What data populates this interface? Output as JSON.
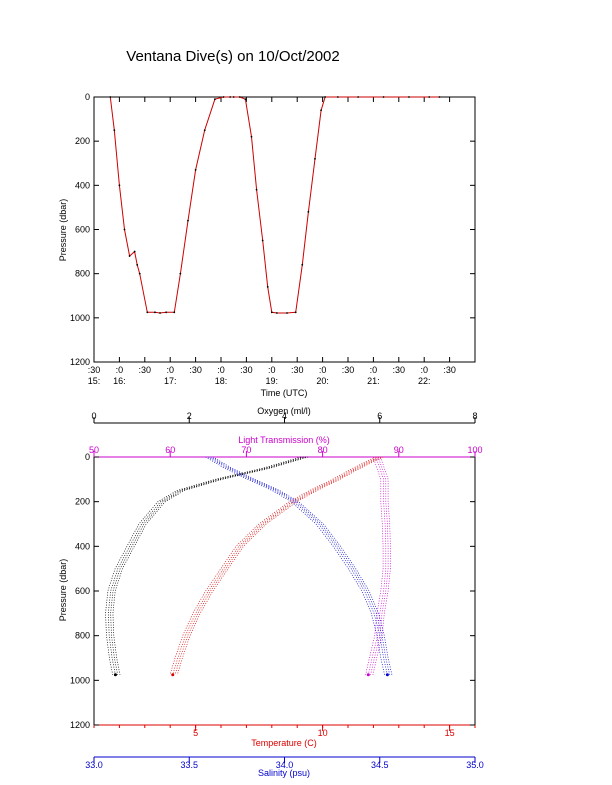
{
  "title": "Ventana Dive(s) on 10/Oct/2002",
  "colors": {
    "axis": "#000000",
    "dive_track": "#cc0000",
    "dive_points": "#000000",
    "oxygen": "#000000",
    "light_transmission": "#cc00cc",
    "temperature": "#dd0000",
    "salinity": "#0000cc"
  },
  "chart_data": [
    {
      "type": "line",
      "title": "Ventana Dive(s) on 10/Oct/2002",
      "xlabel": "Time (UTC)",
      "ylabel": "Pressure (dbar)",
      "xlim": [
        15.5,
        23.0
      ],
      "ylim": [
        1200,
        0
      ],
      "y_ticks": [
        0,
        200,
        400,
        600,
        800,
        1000,
        1200
      ],
      "x_ticks": [
        {
          "value": 15.5,
          "minute": ":30",
          "hour": "15:"
        },
        {
          "value": 16.0,
          "minute": ":0",
          "hour": "16:"
        },
        {
          "value": 16.5,
          "minute": ":30",
          "hour": ""
        },
        {
          "value": 17.0,
          "minute": ":0",
          "hour": "17:"
        },
        {
          "value": 17.5,
          "minute": ":30",
          "hour": ""
        },
        {
          "value": 18.0,
          "minute": ":0",
          "hour": "18:"
        },
        {
          "value": 18.5,
          "minute": ":30",
          "hour": ""
        },
        {
          "value": 19.0,
          "minute": ":0",
          "hour": "19:"
        },
        {
          "value": 19.5,
          "minute": ":30",
          "hour": ""
        },
        {
          "value": 20.0,
          "minute": ":0",
          "hour": "20:"
        },
        {
          "value": 20.5,
          "minute": ":30",
          "hour": ""
        },
        {
          "value": 21.0,
          "minute": ":0",
          "hour": "21:"
        },
        {
          "value": 21.5,
          "minute": ":30",
          "hour": ""
        },
        {
          "value": 22.0,
          "minute": ":0",
          "hour": "22:"
        },
        {
          "value": 22.5,
          "minute": ":30",
          "hour": ""
        }
      ],
      "grid": false,
      "series": [
        {
          "x": [
            15.82,
            15.9,
            16.0,
            16.1,
            16.2,
            16.3,
            16.35,
            16.4,
            16.55,
            16.7,
            16.8,
            16.92,
            17.08,
            17.2,
            17.35,
            17.5,
            17.68,
            17.88,
            18.05,
            18.18,
            18.25,
            18.37,
            18.48,
            18.6,
            18.7,
            18.82,
            18.92,
            19.0,
            19.1,
            19.3,
            19.47,
            19.6,
            19.72,
            19.85,
            19.97,
            20.05,
            20.3,
            20.7,
            21.2,
            21.7,
            22.1,
            22.3
          ],
          "y": [
            0,
            150,
            400,
            600,
            720,
            700,
            760,
            800,
            975,
            975,
            978,
            975,
            975,
            800,
            560,
            330,
            150,
            10,
            0,
            0,
            0,
            0,
            10,
            180,
            420,
            650,
            860,
            975,
            978,
            978,
            975,
            760,
            520,
            280,
            60,
            0,
            0,
            0,
            0,
            0,
            0,
            0
          ]
        }
      ]
    },
    {
      "type": "scatter",
      "ylabel": "Pressure (dbar)",
      "ylim": [
        1200,
        0
      ],
      "y_ticks": [
        0,
        200,
        400,
        600,
        800,
        1000,
        1200
      ],
      "grid": false,
      "axes": {
        "oxygen": {
          "label": "Oxygen (ml/l)",
          "range": [
            0,
            8
          ],
          "ticks": [
            0,
            2,
            4,
            6,
            8
          ],
          "position": "top"
        },
        "light_transmission": {
          "label": "Light Transmission (%)",
          "range": [
            50,
            100
          ],
          "ticks": [
            50,
            60,
            70,
            80,
            90,
            100
          ],
          "position": "top"
        },
        "temperature": {
          "label": "Temperature (C)",
          "range": [
            1,
            16
          ],
          "ticks": [
            5,
            10,
            15
          ],
          "position": "bottom"
        },
        "salinity": {
          "label": "Salinity (psu)",
          "range": [
            33.0,
            35.0
          ],
          "ticks": [
            "33.0",
            "33.5",
            "34.0",
            "34.5",
            "35.0"
          ],
          "position": "bottom"
        }
      },
      "series": [
        {
          "key": "oxygen",
          "pressure": [
            0,
            50,
            100,
            150,
            200,
            300,
            400,
            500,
            600,
            700,
            800,
            900,
            975
          ],
          "values": [
            4.4,
            3.6,
            2.6,
            1.8,
            1.4,
            1.0,
            0.75,
            0.5,
            0.35,
            0.3,
            0.32,
            0.38,
            0.45
          ]
        },
        {
          "key": "light_transmission",
          "pressure": [
            0,
            50,
            100,
            200,
            300,
            400,
            500,
            600,
            700,
            800,
            900,
            975
          ],
          "values": [
            87,
            87.5,
            88,
            88,
            88.2,
            88.3,
            88.3,
            88,
            87.5,
            87.2,
            86.5,
            86
          ]
        },
        {
          "key": "temperature",
          "pressure": [
            0,
            50,
            100,
            150,
            200,
            300,
            400,
            500,
            600,
            700,
            800,
            900,
            975
          ],
          "values": [
            12.2,
            11.3,
            10.5,
            9.6,
            8.8,
            7.6,
            6.7,
            6.1,
            5.5,
            5.0,
            4.6,
            4.3,
            4.1
          ]
        },
        {
          "key": "salinity",
          "pressure": [
            0,
            50,
            100,
            150,
            200,
            300,
            400,
            500,
            600,
            700,
            800,
            900,
            975
          ],
          "values": [
            33.6,
            33.7,
            33.82,
            33.95,
            34.05,
            34.18,
            34.27,
            34.35,
            34.42,
            34.47,
            34.5,
            34.52,
            34.54
          ]
        }
      ]
    }
  ]
}
